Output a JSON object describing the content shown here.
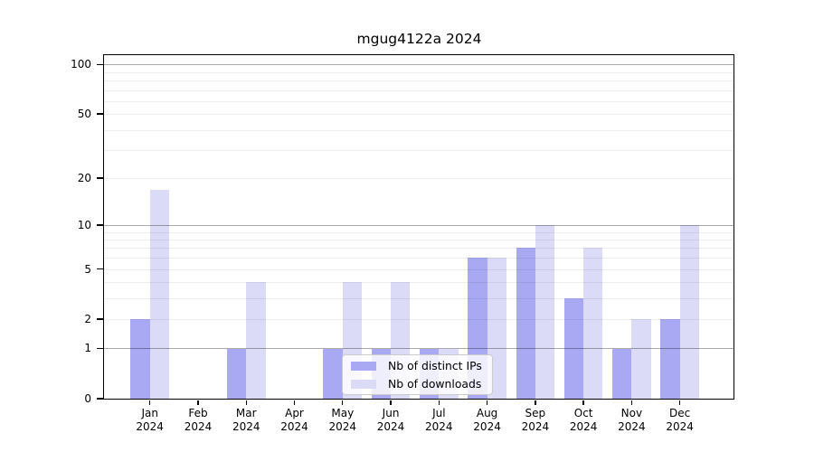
{
  "chart_data": {
    "type": "bar",
    "title": "mgug4122a 2024",
    "categories": [
      "Jan 2024",
      "Feb 2024",
      "Mar 2024",
      "Apr 2024",
      "May 2024",
      "Jun 2024",
      "Jul 2024",
      "Aug 2024",
      "Sep 2024",
      "Oct 2024",
      "Nov 2024",
      "Dec 2024"
    ],
    "series": [
      {
        "name": "Nb of distinct IPs",
        "color": "#a9a9f3",
        "values": [
          2,
          0,
          1,
          0,
          1,
          1,
          1,
          6,
          7,
          3,
          1,
          2
        ]
      },
      {
        "name": "Nb of downloads",
        "color": "#dbdbf8",
        "values": [
          17,
          0,
          4,
          0,
          4,
          4,
          1,
          6,
          10,
          7,
          2,
          10
        ]
      }
    ],
    "xlabel": "",
    "ylabel": "",
    "yscale": "log1p",
    "ylim": [
      0,
      114
    ],
    "yticks": [
      100,
      50,
      20,
      10,
      5,
      2,
      1,
      0
    ],
    "major_gridlines": [
      1,
      10,
      100
    ],
    "minor_gridlines": [
      2,
      3,
      4,
      5,
      6,
      7,
      8,
      9,
      20,
      30,
      40,
      50,
      60,
      70,
      80,
      90
    ],
    "grid": true,
    "legend_position": "lower center",
    "text_color": "#000000",
    "background_color": "#ffffff"
  }
}
